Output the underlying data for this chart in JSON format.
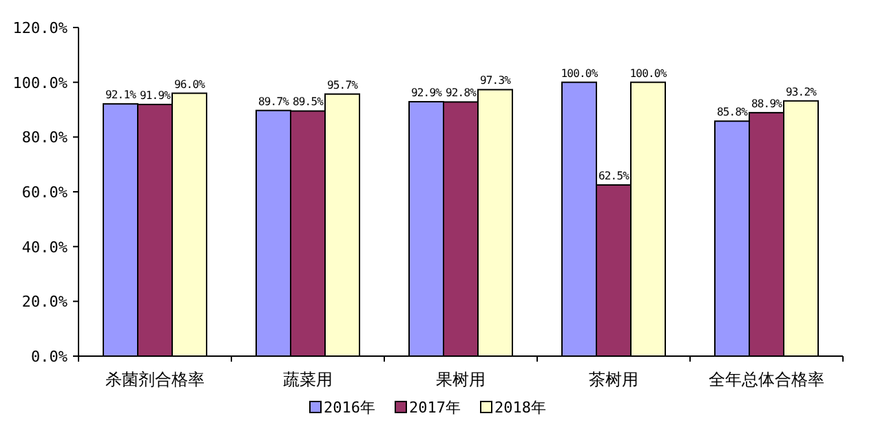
{
  "chart_data": {
    "type": "bar",
    "categories": [
      "杀菌剂合格率",
      "蔬菜用",
      "果树用",
      "茶树用",
      "全年总体合格率"
    ],
    "series": [
      {
        "name": "2016年",
        "color": "#9999ff",
        "values": [
          92.1,
          89.7,
          92.9,
          100.0,
          85.8
        ],
        "value_labels": [
          "92.1%",
          "89.7%",
          "92.9%",
          "100.0%",
          "85.8%"
        ]
      },
      {
        "name": "2017年",
        "color": "#993366",
        "values": [
          91.9,
          89.5,
          92.8,
          62.5,
          88.9
        ],
        "value_labels": [
          "91.9%",
          "89.5%",
          "92.8%",
          "62.5%",
          "88.9%"
        ]
      },
      {
        "name": "2018年",
        "color": "#ffffcc",
        "values": [
          96.0,
          95.7,
          97.3,
          100.0,
          93.2
        ],
        "value_labels": [
          "96.0%",
          "95.7%",
          "97.3%",
          "100.0%",
          "93.2%"
        ]
      }
    ],
    "ylim": [
      0,
      120
    ],
    "yticks": [
      {
        "value": 0,
        "label": "0.0%"
      },
      {
        "value": 20,
        "label": "20.0%"
      },
      {
        "value": 40,
        "label": "40.0%"
      },
      {
        "value": 60,
        "label": "60.0%"
      },
      {
        "value": 80,
        "label": "80.0%"
      },
      {
        "value": 100,
        "label": "100.0%"
      },
      {
        "value": 120,
        "label": "120.0%"
      }
    ],
    "legend": "bottom",
    "grid": false
  }
}
